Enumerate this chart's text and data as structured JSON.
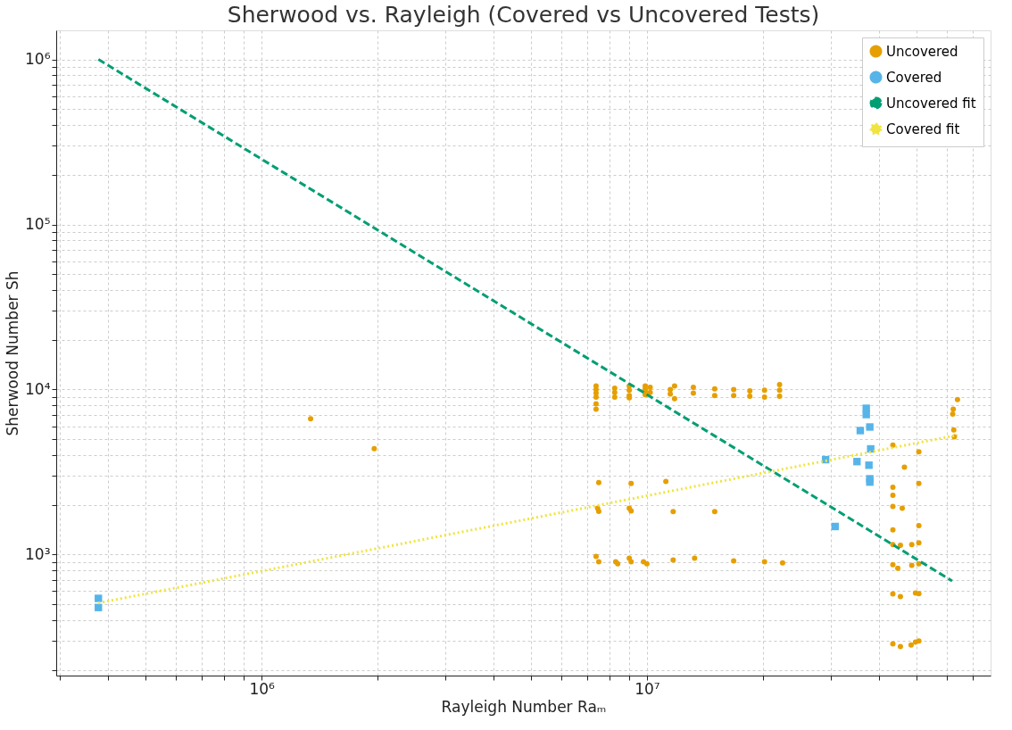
{
  "chart_data": {
    "type": "scatter",
    "title": "Sherwood vs. Rayleigh (Covered vs Uncovered Tests)",
    "xlabel": "Rayleigh Number Raₘ",
    "ylabel": "Sherwood Number Sh",
    "log": "xy",
    "grid": true,
    "legend": "top right",
    "xlim": [
      293000,
      78000000
    ],
    "ylim": [
      185,
      1500000
    ],
    "xticks": [
      {
        "value": 300000,
        "label": null
      },
      {
        "value": 400000,
        "label": null
      },
      {
        "value": 500000,
        "label": null
      },
      {
        "value": 600000,
        "label": null
      },
      {
        "value": 700000,
        "label": null
      },
      {
        "value": 800000,
        "label": null
      },
      {
        "value": 900000,
        "label": null
      },
      {
        "value": 1000000,
        "label": "10⁶"
      },
      {
        "value": 2000000,
        "label": null
      },
      {
        "value": 3000000,
        "label": null
      },
      {
        "value": 4000000,
        "label": null
      },
      {
        "value": 5000000,
        "label": null
      },
      {
        "value": 6000000,
        "label": null
      },
      {
        "value": 7000000,
        "label": null
      },
      {
        "value": 8000000,
        "label": null
      },
      {
        "value": 9000000,
        "label": null
      },
      {
        "value": 10000000,
        "label": "10⁷"
      },
      {
        "value": 20000000,
        "label": null
      },
      {
        "value": 30000000,
        "label": null
      },
      {
        "value": 40000000,
        "label": null
      },
      {
        "value": 50000000,
        "label": null
      },
      {
        "value": 60000000,
        "label": null
      },
      {
        "value": 70000000,
        "label": null
      }
    ],
    "yticks": [
      {
        "value": 200,
        "label": null
      },
      {
        "value": 300,
        "label": null
      },
      {
        "value": 400,
        "label": null
      },
      {
        "value": 500,
        "label": null
      },
      {
        "value": 600,
        "label": null
      },
      {
        "value": 700,
        "label": null
      },
      {
        "value": 800,
        "label": null
      },
      {
        "value": 900,
        "label": null
      },
      {
        "value": 1000,
        "label": "10³"
      },
      {
        "value": 2000,
        "label": null
      },
      {
        "value": 3000,
        "label": null
      },
      {
        "value": 4000,
        "label": null
      },
      {
        "value": 5000,
        "label": null
      },
      {
        "value": 6000,
        "label": null
      },
      {
        "value": 7000,
        "label": null
      },
      {
        "value": 8000,
        "label": null
      },
      {
        "value": 9000,
        "label": null
      },
      {
        "value": 10000,
        "label": "10⁴"
      },
      {
        "value": 20000,
        "label": null
      },
      {
        "value": 30000,
        "label": null
      },
      {
        "value": 40000,
        "label": null
      },
      {
        "value": 50000,
        "label": null
      },
      {
        "value": 60000,
        "label": null
      },
      {
        "value": 70000,
        "label": null
      },
      {
        "value": 80000,
        "label": null
      },
      {
        "value": 90000,
        "label": null
      },
      {
        "value": 100000,
        "label": "10⁵"
      },
      {
        "value": 200000,
        "label": null
      },
      {
        "value": 300000,
        "label": null
      },
      {
        "value": 400000,
        "label": null
      },
      {
        "value": 500000,
        "label": null
      },
      {
        "value": 600000,
        "label": null
      },
      {
        "value": 700000,
        "label": null
      },
      {
        "value": 800000,
        "label": null
      },
      {
        "value": 900000,
        "label": null
      },
      {
        "value": 1000000,
        "label": "10⁶"
      }
    ],
    "series": [
      {
        "name": "Uncovered",
        "marker": "circle",
        "color": "#e69f00",
        "x": [
          1340000,
          1960000,
          7380000,
          7380000,
          7380000,
          7380000,
          7380000,
          7380000,
          8250000,
          8250000,
          8250000,
          9000000,
          9000000,
          9000000,
          9000000,
          9900000,
          9900000,
          9900000,
          9900000,
          10200000,
          10200000,
          11500000,
          11500000,
          11800000,
          11800000,
          13200000,
          13200000,
          15000000,
          15000000,
          16800000,
          16800000,
          18500000,
          18500000,
          20200000,
          20200000,
          22100000,
          22100000,
          22100000,
          7500000,
          9100000,
          11200000,
          7450000,
          7500000,
          9000000,
          9100000,
          11700000,
          15000000,
          7380000,
          7500000,
          8300000,
          8400000,
          9000000,
          9100000,
          9800000,
          10000000,
          11700000,
          13300000,
          16800000,
          20200000,
          22500000,
          43500000,
          43500000,
          43500000,
          43500000,
          43500000,
          43500000,
          43500000,
          43500000,
          43500000,
          46000000,
          46600000,
          45500000,
          44800000,
          45500000,
          45500000,
          50800000,
          50800000,
          50800000,
          50800000,
          48700000,
          50800000,
          48700000,
          49800000,
          50800000,
          50800000,
          49800000,
          48500000,
          64000000,
          62400000,
          62200000,
          62600000,
          62800000
        ],
        "values": [
          6650,
          4380,
          10500,
          10000,
          9500,
          9000,
          8200,
          7600,
          10200,
          9600,
          9000,
          10500,
          9900,
          9200,
          8900,
          10500,
          10100,
          9700,
          9300,
          10300,
          9600,
          10000,
          9400,
          10500,
          8800,
          10300,
          9500,
          10100,
          9200,
          10000,
          9200,
          9800,
          9100,
          9900,
          9000,
          10700,
          9900,
          9100,
          2730,
          2700,
          2770,
          1910,
          1830,
          1910,
          1840,
          1820,
          1820,
          975,
          905,
          905,
          880,
          950,
          905,
          905,
          880,
          927,
          950,
          915,
          905,
          890,
          4600,
          2560,
          2290,
          1960,
          1410,
          1150,
          870,
          578,
          288,
          1910,
          3390,
          1140,
          826,
          557,
          277,
          4200,
          2700,
          1500,
          1180,
          1150,
          880,
          860,
          586,
          580,
          300,
          295,
          283,
          8700,
          7600,
          7100,
          5700,
          5170
        ]
      },
      {
        "name": "Covered",
        "marker": "square",
        "color": "#56b4e9",
        "x": [
          377000,
          377000,
          29100000,
          30800000,
          35100000,
          35800000,
          37100000,
          37100000,
          37700000,
          37900000,
          37900000,
          38100000,
          37900000
        ],
        "values": [
          543,
          478,
          3760,
          1480,
          3660,
          5640,
          7700,
          7050,
          3480,
          5930,
          2880,
          4370,
          2750
        ]
      },
      {
        "name": "Uncovered fit",
        "type": "line",
        "line_style": "dashed",
        "color": "#009e73",
        "x": [
          377000,
          62000000
        ],
        "values": [
          1000000,
          692
        ]
      },
      {
        "name": "Covered fit",
        "type": "line",
        "line_style": "dotted",
        "color": "#f0e442",
        "x": [
          377000,
          64000000
        ],
        "values": [
          509,
          5300
        ]
      }
    ]
  }
}
